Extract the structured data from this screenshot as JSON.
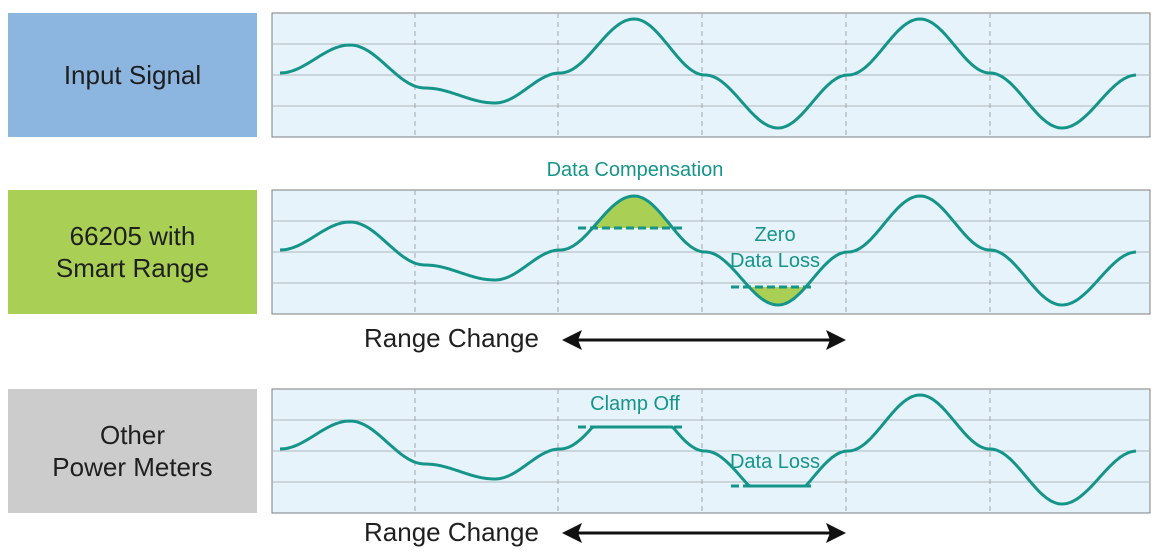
{
  "colors": {
    "input_box": "#8cb5e0",
    "smart_box": "#a9cf54",
    "other_box": "#cccccc",
    "panel_bg": "#e6f3fb",
    "panel_border": "#7f7f7f",
    "wave": "#15958a",
    "fill": "#a9cf54",
    "arrow": "#111111"
  },
  "rows": {
    "input": {
      "label": "Input Signal"
    },
    "smart": {
      "label_line1": "66205 with",
      "label_line2": "Smart Range"
    },
    "other": {
      "label_line1": "Other",
      "label_line2": "Power Meters"
    }
  },
  "annotations": {
    "data_compensation": "Data Compensation",
    "zero_line1": "Zero",
    "zero_line2": "Data Loss",
    "clamp_off": "Clamp Off",
    "data_loss": "Data Loss"
  },
  "range_change": "Range Change"
}
